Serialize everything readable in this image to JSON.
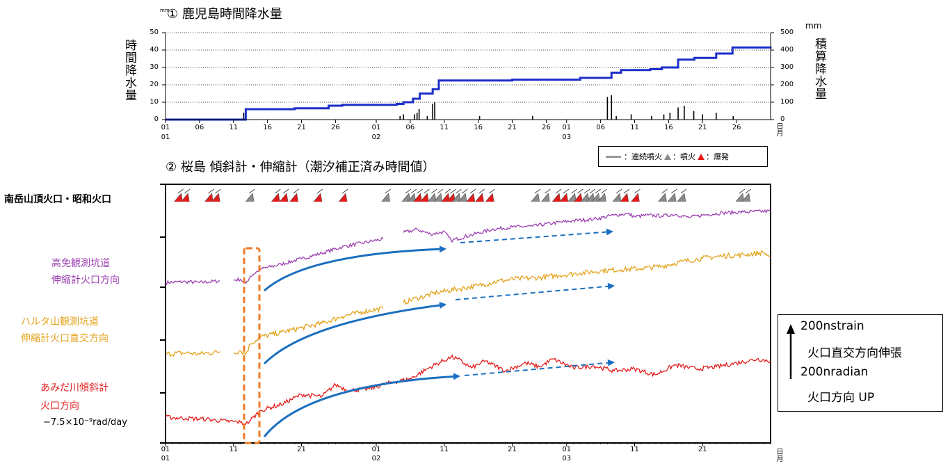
{
  "chart_data": [
    {
      "type": "line",
      "title": "① 鹿児島時間降水量",
      "ylabel": "時間降水量",
      "y2label": "積算降水量",
      "yunit": "mm",
      "y2unit": "mm",
      "ylim": [
        0,
        50
      ],
      "y2lim": [
        0,
        500
      ],
      "yticks": [
        "0",
        "10",
        "20",
        "30",
        "40",
        "50"
      ],
      "y2ticks": [
        "0",
        "100",
        "200",
        "300",
        "400",
        "500"
      ],
      "xlim": [
        1,
        90
      ],
      "xticks": [
        {
          "x": 1,
          "label": "01",
          "month": "01"
        },
        {
          "x": 6,
          "label": "06"
        },
        {
          "x": 11,
          "label": "11"
        },
        {
          "x": 16,
          "label": "16"
        },
        {
          "x": 21,
          "label": "21"
        },
        {
          "x": 26,
          "label": "26"
        },
        {
          "x": 32,
          "label": "01",
          "month": "02"
        },
        {
          "x": 37,
          "label": "06"
        },
        {
          "x": 42,
          "label": "11"
        },
        {
          "x": 47,
          "label": "16"
        },
        {
          "x": 52,
          "label": "21"
        },
        {
          "x": 57,
          "label": "26"
        },
        {
          "x": 60,
          "label": "01",
          "month": "03"
        },
        {
          "x": 65,
          "label": "06"
        },
        {
          "x": 70,
          "label": "11"
        },
        {
          "x": 75,
          "label": "16"
        },
        {
          "x": 80,
          "label": "21"
        },
        {
          "x": 85,
          "label": "26"
        }
      ],
      "xaxis_end_label": "日月",
      "grid": "dotted-horizontal",
      "series": [
        {
          "kind": "cumulative",
          "axis": "right",
          "color": "#1c2fc8",
          "x": [
            1,
            12.3,
            12.8,
            20,
            25,
            27,
            35,
            36,
            37.4,
            38.4,
            40.3,
            41.2,
            52,
            62,
            66.6,
            68,
            72.3,
            74,
            76.4,
            78.8,
            82,
            84.4,
            90
          ],
          "y": [
            0,
            0,
            60,
            65,
            80,
            85,
            90,
            100,
            120,
            150,
            175,
            225,
            230,
            240,
            270,
            285,
            290,
            300,
            345,
            355,
            380,
            415,
            420
          ]
        },
        {
          "kind": "hourly-bars",
          "axis": "left",
          "color": "#000000",
          "x": [
            12.5,
            35.5,
            36,
            37.6,
            38,
            38.3,
            39.5,
            40.3,
            40.6,
            47.2,
            55,
            66,
            66.6,
            67.3,
            69.5,
            72.5,
            74.3,
            75.2,
            76.4,
            77.3,
            78.7,
            80,
            82,
            84.5
          ],
          "y": [
            4,
            2,
            3,
            3,
            4,
            6,
            2,
            9,
            10,
            2,
            2,
            13,
            14,
            2,
            3,
            2,
            3,
            4,
            7,
            8,
            5,
            3,
            4,
            2
          ]
        }
      ]
    },
    {
      "type": "line",
      "title": "② 桜島 傾斜計・伸縮計（潮汐補正済み時間値）",
      "xlim": [
        1,
        90
      ],
      "xticks": [
        {
          "x": 1,
          "label": "01",
          "month": "01"
        },
        {
          "x": 11,
          "label": "11"
        },
        {
          "x": 21,
          "label": "21"
        },
        {
          "x": 32,
          "label": "01",
          "month": "02"
        },
        {
          "x": 42,
          "label": "11"
        },
        {
          "x": 52,
          "label": "21"
        },
        {
          "x": 60,
          "label": "01",
          "month": "03"
        },
        {
          "x": 70,
          "label": "11"
        },
        {
          "x": 80,
          "label": "21"
        }
      ],
      "xaxis_end_label": "日月",
      "eruption_row_label": "南岳山頂火口・昭和火口",
      "eruptions": [
        {
          "x": 3,
          "type": "explosion"
        },
        {
          "x": 4,
          "type": "explosion"
        },
        {
          "x": 7.5,
          "type": "explosion"
        },
        {
          "x": 8.5,
          "type": "explosion"
        },
        {
          "x": 13.5,
          "type": "eruption"
        },
        {
          "x": 17.3,
          "type": "explosion"
        },
        {
          "x": 18.5,
          "type": "explosion"
        },
        {
          "x": 20,
          "type": "explosion"
        },
        {
          "x": 23.5,
          "type": "explosion"
        },
        {
          "x": 27.2,
          "type": "explosion"
        },
        {
          "x": 33.5,
          "type": "eruption"
        },
        {
          "x": 36.5,
          "type": "eruption"
        },
        {
          "x": 37.3,
          "type": "eruption"
        },
        {
          "x": 38.2,
          "type": "explosion"
        },
        {
          "x": 39.2,
          "type": "explosion"
        },
        {
          "x": 40.3,
          "type": "eruption"
        },
        {
          "x": 41.2,
          "type": "eruption"
        },
        {
          "x": 42.3,
          "type": "explosion"
        },
        {
          "x": 43.1,
          "type": "explosion"
        },
        {
          "x": 43.9,
          "type": "eruption"
        },
        {
          "x": 44.8,
          "type": "eruption"
        },
        {
          "x": 46,
          "type": "explosion"
        },
        {
          "x": 47.3,
          "type": "explosion"
        },
        {
          "x": 48.8,
          "type": "explosion"
        },
        {
          "x": 55.5,
          "type": "eruption"
        },
        {
          "x": 57,
          "type": "eruption"
        },
        {
          "x": 58.6,
          "type": "explosion"
        },
        {
          "x": 59.7,
          "type": "explosion"
        },
        {
          "x": 60.9,
          "type": "eruption"
        },
        {
          "x": 61.8,
          "type": "explosion"
        },
        {
          "x": 62.8,
          "type": "eruption"
        },
        {
          "x": 63.6,
          "type": "eruption"
        },
        {
          "x": 64.4,
          "type": "eruption"
        },
        {
          "x": 65.3,
          "type": "eruption"
        },
        {
          "x": 67.5,
          "type": "eruption"
        },
        {
          "x": 68.6,
          "type": "explosion"
        },
        {
          "x": 70.2,
          "type": "explosion"
        },
        {
          "x": 74.2,
          "type": "eruption"
        },
        {
          "x": 75.6,
          "type": "eruption"
        },
        {
          "x": 77,
          "type": "eruption"
        },
        {
          "x": 85.6,
          "type": "eruption"
        },
        {
          "x": 86.5,
          "type": "eruption"
        }
      ],
      "series": [
        {
          "name": "高免観測坑道 伸縮計火口方向",
          "color": "#9b3fb0",
          "x": [
            1,
            4,
            6,
            9,
            9.7,
            11,
            12,
            12.8,
            13.5,
            15,
            18,
            21,
            24,
            27,
            30,
            33,
            34.6,
            36,
            38,
            40,
            42,
            43,
            46,
            49,
            52,
            55,
            58,
            61,
            64,
            67,
            69,
            70,
            72,
            74,
            76,
            78,
            80,
            83,
            86,
            90
          ],
          "y": [
            5,
            6,
            5,
            7,
            null,
            8,
            9,
            4,
            13,
            22,
            28,
            35,
            42,
            50,
            55,
            60,
            null,
            68,
            72,
            66,
            69,
            58,
            65,
            72,
            75,
            76,
            80,
            83,
            85,
            90,
            92,
            88,
            90,
            89,
            91,
            87,
            90,
            93,
            94,
            95
          ]
        },
        {
          "name": "ハルタ山観測坑道 伸縮計火口直交方向",
          "color": "#e3a21a",
          "x": [
            1,
            4,
            6,
            9,
            9.7,
            11,
            12,
            12.8,
            13.5,
            15,
            18,
            21,
            24,
            27,
            30,
            33,
            34.5,
            36,
            38,
            41,
            44,
            47,
            50,
            53,
            56,
            59,
            62,
            65,
            68,
            71,
            74,
            77,
            80,
            83,
            86,
            89,
            90
          ],
          "y": [
            3,
            4,
            3,
            5,
            null,
            4,
            6,
            3,
            12,
            18,
            22,
            26,
            30,
            36,
            40,
            43,
            null,
            48,
            52,
            57,
            60,
            63,
            67,
            69,
            70,
            72,
            74,
            76,
            77,
            78,
            80,
            84,
            87,
            89,
            90,
            92,
            88
          ]
        },
        {
          "name": "あみだ川傾斜計 火口方向",
          "color": "#e31b1b",
          "x": [
            1,
            4,
            7,
            10,
            12,
            12.8,
            13.5,
            15,
            18,
            21,
            24,
            26,
            28,
            31,
            34,
            37,
            40,
            43,
            44,
            46,
            48,
            51,
            54,
            56,
            58,
            61,
            64,
            67,
            70,
            73,
            76,
            79,
            82,
            85,
            88,
            90
          ],
          "y": [
            7,
            6,
            5,
            3,
            2,
            0,
            4,
            14,
            20,
            30,
            28,
            40,
            34,
            36,
            42,
            46,
            58,
            68,
            66,
            57,
            64,
            54,
            62,
            58,
            66,
            57,
            59,
            54,
            56,
            50,
            60,
            56,
            58,
            62,
            66,
            64
          ]
        }
      ],
      "annotations": {
        "tilt_rate": "−7.5×10⁻⁹rad/day"
      }
    }
  ],
  "legend": {
    "continuous": "：連続噴火",
    "eruption": "：噴火",
    "explosion": "：爆発"
  },
  "scale": {
    "strain_value": "200nstrain",
    "strain_desc": "火口直交方向伸張",
    "tilt_value": "200nradian",
    "tilt_desc": "火口方向 UP"
  },
  "series_labels": {
    "koumen_1": "高免観測坑道",
    "koumen_2": "伸縮計火口方向",
    "haruta_1": "ハルタ山観測坑道",
    "haruta_2": "伸縮計火口直交方向",
    "amida_1": "あみだ川傾斜計",
    "amida_2": "火口方向"
  },
  "colors": {
    "rain_cumulative": "#1c2fc8",
    "koumen": "#9b3fb0",
    "haruta": "#e3a21a",
    "amida": "#e31b1b",
    "trend_arrow": "#1a6fc0",
    "highlight_box": "#ee7a25",
    "explosion": "#e31b1b",
    "eruption": "#8a8a8a"
  }
}
